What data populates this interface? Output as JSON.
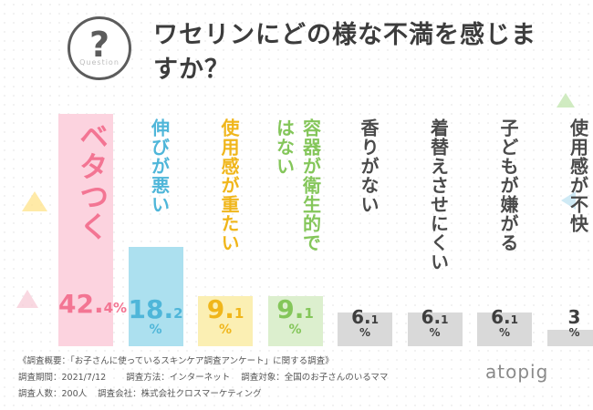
{
  "question_icon": {
    "mark": "?",
    "text": "Question"
  },
  "title": "ワセリンにどの様な不満を感じますか？",
  "chart_data": {
    "type": "bar",
    "categories": [
      "ベタつく",
      "伸びが悪い",
      "使用感が重たい",
      "容器が衛生的ではない",
      "香りがない",
      "着替えさせにくい",
      "子どもが嫌がる",
      "使用感が不快"
    ],
    "values": [
      42.4,
      18.2,
      9.1,
      9.1,
      6.1,
      6.1,
      6.1,
      3
    ],
    "value_labels": [
      {
        "int": "42.",
        "dec": "4",
        "unit": "%"
      },
      {
        "int": "18.",
        "dec": "2",
        "unit": "%"
      },
      {
        "int": "9.",
        "dec": "1",
        "unit": "%"
      },
      {
        "int": "9.",
        "dec": "1",
        "unit": "%"
      },
      {
        "int": "6.",
        "dec": "1",
        "unit": "%"
      },
      {
        "int": "6.",
        "dec": "1",
        "unit": "%"
      },
      {
        "int": "6.",
        "dec": "1",
        "unit": "%"
      },
      {
        "int": "3",
        "dec": "",
        "unit": "%"
      }
    ],
    "bar_colors": [
      "#fcd3df",
      "#ace0ef",
      "#fbefb3",
      "#dcefce",
      "#d9d9d9",
      "#d9d9d9",
      "#d9d9d9",
      "#d9d9d9"
    ],
    "label_colors": [
      "#f37593",
      "#4fb6d9",
      "#f0b61b",
      "#84c65a",
      "#4a4a4a",
      "#4a4a4a",
      "#4a4a4a",
      "#4a4a4a"
    ]
  },
  "footnote": {
    "line1": "《調査概要：「お子さんに使っているスキンケア調査アンケート」に関する調査》",
    "line2a": "調査期間：2021/7/12",
    "line2b": "調査方法：インターネット",
    "line2c": "調査対象：全国のお子さんのいるママ",
    "line3a": "調査人数：200人",
    "line3b": "調査会社：株式会社クロスマーケティング"
  },
  "brand": "atopig"
}
